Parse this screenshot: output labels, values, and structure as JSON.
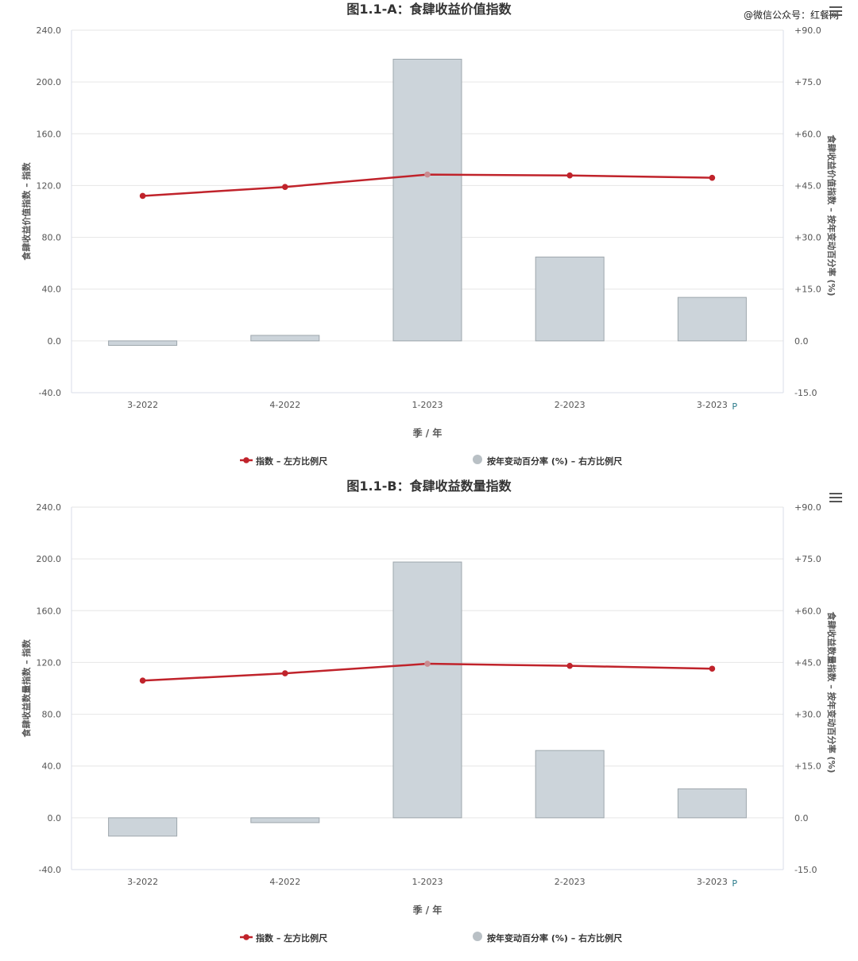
{
  "watermark": "@微信公众号：红餐网",
  "icons": {
    "menu": "hamburger-menu-icon"
  },
  "colors": {
    "line": "#c0232b",
    "bar_fill": "#ccd4da",
    "bar_stroke": "#9ea7ad",
    "grid": "#e6e6e6",
    "highlight_point": "#c98c91"
  },
  "charts": [
    {
      "chart_data": {
        "type": "bar+line",
        "title": "图1.1-A：食肆收益价值指数",
        "categories": [
          "3-2022",
          "4-2022",
          "1-2023",
          "2-2023",
          "3-2023"
        ],
        "category_suffix": [
          "",
          "",
          "",
          "",
          "P"
        ],
        "xlabel": "季 / 年",
        "ylabel_left": "食肆收益价值指数 – 指数",
        "ylabel_right": "食肆收益价值指数 – 按年变动百分率 (%)",
        "ylim_left": [
          -40,
          240
        ],
        "ylim_right": [
          -15,
          90
        ],
        "left_ticks": [
          "-40.0",
          "0.0",
          "40.0",
          "80.0",
          "120.0",
          "160.0",
          "200.0",
          "240.0"
        ],
        "right_ticks": [
          "-15.0",
          "0.0",
          "+15.0",
          "+30.0",
          "+45.0",
          "+60.0",
          "+75.0",
          "+90.0"
        ],
        "grid": true,
        "legend_position": "bottom",
        "series": [
          {
            "name": "指数 – 左方比例尺",
            "type": "line",
            "axis": "left",
            "values": [
              112.0,
              118.9,
              128.5,
              127.8,
              126.0
            ]
          },
          {
            "name": "按年变动百分率 (%) – 右方比例尺",
            "type": "bar",
            "axis": "right",
            "values": [
              -1.3,
              1.6,
              81.6,
              24.3,
              12.6
            ]
          }
        ]
      }
    },
    {
      "chart_data": {
        "type": "bar+line",
        "title": "图1.1-B：食肆收益数量指数",
        "categories": [
          "3-2022",
          "4-2022",
          "1-2023",
          "2-2023",
          "3-2023"
        ],
        "category_suffix": [
          "",
          "",
          "",
          "",
          "P"
        ],
        "xlabel": "季 / 年",
        "ylabel_left": "食肆收益数量指数 – 指数",
        "ylabel_right": "食肆收益数量指数 – 按年变动百分率 (%)",
        "ylim_left": [
          -40,
          240
        ],
        "ylim_right": [
          -15,
          90
        ],
        "left_ticks": [
          "-40.0",
          "0.0",
          "40.0",
          "80.0",
          "120.0",
          "160.0",
          "200.0",
          "240.0"
        ],
        "right_ticks": [
          "-15.0",
          "0.0",
          "+15.0",
          "+30.0",
          "+45.0",
          "+60.0",
          "+75.0",
          "+90.0"
        ],
        "grid": true,
        "legend_position": "bottom",
        "series": [
          {
            "name": "指数 – 左方比例尺",
            "type": "line",
            "axis": "left",
            "values": [
              106.0,
              111.6,
              119.0,
              117.4,
              115.2
            ]
          },
          {
            "name": "按年变动百分率 (%) – 右方比例尺",
            "type": "bar",
            "axis": "right",
            "values": [
              -5.3,
              -1.4,
              74.1,
              19.5,
              8.4
            ]
          }
        ]
      }
    }
  ]
}
